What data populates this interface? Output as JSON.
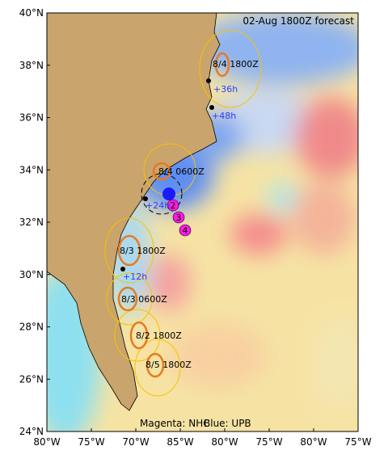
{
  "header": {
    "title": "02-Aug 1800Z forecast"
  },
  "axes": {
    "y_labels": [
      "40°N",
      "38°N",
      "36°N",
      "34°N",
      "32°N",
      "30°N",
      "28°N",
      "26°N",
      "24°N"
    ],
    "x_labels": [
      "80°W",
      "75°W",
      "70°W",
      "85°W",
      "80°W",
      "75°W",
      "80°W",
      "75°W"
    ]
  },
  "labels": {
    "t1": "8/4 1800Z",
    "t2": "8/4 0600Z",
    "t3": "8/3 1800Z",
    "t4": "8/3 0600Z",
    "t5": "8/2 1800Z",
    "t6": "8/5 1800Z",
    "h36": "+36h",
    "h48": "+48h",
    "h24": "+24h",
    "h12": "+12h",
    "n2": "2",
    "n3": "3",
    "n4": "4"
  },
  "footer": {
    "magenta": "Magenta: NHC",
    "blue": "Blue: UPB"
  }
}
